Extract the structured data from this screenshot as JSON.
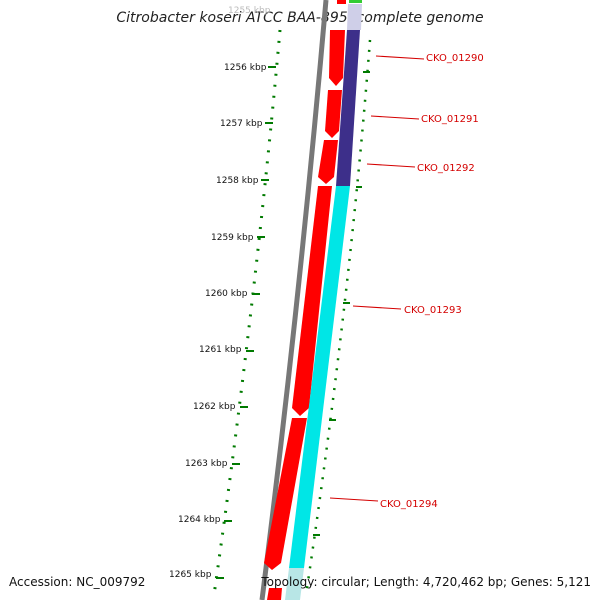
{
  "title": "Citrobacter koseri ATCC BAA-895, complete genome",
  "footer": {
    "accession": "Accession: NC_009792",
    "summary": "Topology: circular; Length: 4,720,462 bp; Genes: 5,121"
  },
  "scale": {
    "first_label": "1255 kbp",
    "labels": [
      "1256 kbp",
      "1257 kbp",
      "1258 kbp",
      "1259 kbp",
      "1260 kbp",
      "1261 kbp",
      "1262 kbp",
      "1263 kbp",
      "1264 kbp",
      "1265 kbp"
    ]
  },
  "genes": [
    {
      "name": "CKO_01290",
      "color": "#3d2f8a"
    },
    {
      "name": "CKO_01291",
      "color": "#3d2f8a"
    },
    {
      "name": "CKO_01292",
      "color": "#3d2f8a"
    },
    {
      "name": "CKO_01293",
      "color": "#00e6e6"
    },
    {
      "name": "CKO_01294",
      "color": "#00e6e6"
    }
  ],
  "colors": {
    "backbone": "#777777",
    "cds": "#ff0000",
    "scale": "#007a00",
    "label": "#d40000"
  }
}
